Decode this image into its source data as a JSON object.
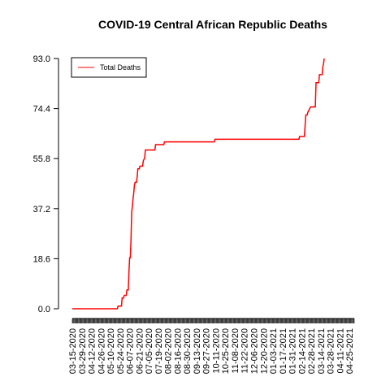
{
  "chart_data": {
    "type": "line",
    "title": "COVID-19 Central African Republic Deaths",
    "xlabel": "",
    "ylabel": "",
    "ylim": [
      0,
      93
    ],
    "yticks": [
      "0.0",
      "18.6",
      "37.2",
      "55.8",
      "74.4",
      "93.0"
    ],
    "x_range": [
      "03-15-2020",
      "05-02-2021"
    ],
    "xtick_labels": [
      "03-15-2020",
      "03-29-2020",
      "04-12-2020",
      "04-26-2020",
      "05-10-2020",
      "05-24-2020",
      "06-07-2020",
      "06-21-2020",
      "07-05-2020",
      "07-19-2020",
      "08-02-2020",
      "08-16-2020",
      "08-30-2020",
      "09-13-2020",
      "09-27-2020",
      "10-11-2020",
      "10-25-2020",
      "11-08-2020",
      "11-22-2020",
      "12-06-2020",
      "12-20-2020",
      "01-03-2021",
      "01-17-2021",
      "01-31-2021",
      "02-14-2021",
      "02-28-2021",
      "03-14-2021",
      "03-28-2021",
      "04-11-2021",
      "04-25-2021"
    ],
    "legend": {
      "position": "top-left",
      "entries": [
        "Total Deaths"
      ]
    },
    "series": [
      {
        "name": "Total Deaths",
        "color": "#ff0000",
        "points": [
          [
            "03-15-2020",
            0
          ],
          [
            "05-20-2020",
            0
          ],
          [
            "05-21-2020",
            1
          ],
          [
            "05-26-2020",
            1
          ],
          [
            "05-27-2020",
            4
          ],
          [
            "05-29-2020",
            4
          ],
          [
            "05-30-2020",
            5
          ],
          [
            "06-02-2020",
            5
          ],
          [
            "06-03-2020",
            7
          ],
          [
            "06-05-2020",
            7
          ],
          [
            "06-06-2020",
            14
          ],
          [
            "06-07-2020",
            19
          ],
          [
            "06-08-2020",
            19
          ],
          [
            "06-09-2020",
            26
          ],
          [
            "06-10-2020",
            36
          ],
          [
            "06-11-2020",
            38
          ],
          [
            "06-12-2020",
            41
          ],
          [
            "06-13-2020",
            43
          ],
          [
            "06-14-2020",
            46
          ],
          [
            "06-15-2020",
            47
          ],
          [
            "06-17-2020",
            47
          ],
          [
            "06-18-2020",
            49
          ],
          [
            "06-19-2020",
            52
          ],
          [
            "06-21-2020",
            52
          ],
          [
            "06-22-2020",
            53
          ],
          [
            "06-26-2020",
            53
          ],
          [
            "06-27-2020",
            55
          ],
          [
            "06-29-2020",
            56
          ],
          [
            "06-30-2020",
            59
          ],
          [
            "07-14-2020",
            59
          ],
          [
            "07-15-2020",
            61
          ],
          [
            "07-27-2020",
            61
          ],
          [
            "07-28-2020",
            62
          ],
          [
            "10-09-2020",
            62
          ],
          [
            "10-10-2020",
            63
          ],
          [
            "02-10-2021",
            63
          ],
          [
            "02-11-2021",
            64
          ],
          [
            "02-18-2021",
            64
          ],
          [
            "02-19-2021",
            68
          ],
          [
            "02-20-2021",
            72
          ],
          [
            "02-22-2021",
            72
          ],
          [
            "02-23-2021",
            73
          ],
          [
            "02-25-2021",
            74
          ],
          [
            "02-27-2021",
            75
          ],
          [
            "03-06-2021",
            75
          ],
          [
            "03-07-2021",
            84
          ],
          [
            "03-11-2021",
            84
          ],
          [
            "03-12-2021",
            87
          ],
          [
            "03-16-2021",
            87
          ],
          [
            "03-17-2021",
            90
          ],
          [
            "03-18-2021",
            91
          ],
          [
            "03-19-2021",
            93
          ]
        ]
      }
    ]
  }
}
